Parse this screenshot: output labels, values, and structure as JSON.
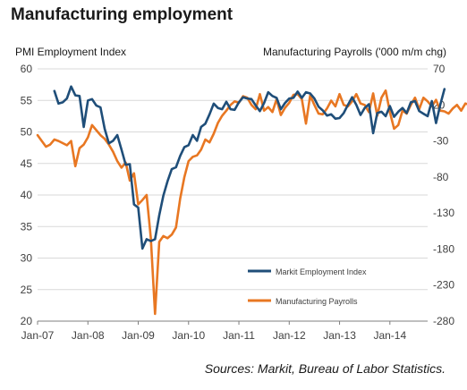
{
  "title": "Manufacturing employment",
  "source": "Sources: Markit, Bureau of Labor Statistics.",
  "colors": {
    "series_pmi": "#1f4e79",
    "series_payrolls": "#e87722",
    "grid": "#d9d9d9",
    "axis": "#7f7f7f"
  },
  "chart_data": {
    "type": "line",
    "title": "Manufacturing employment",
    "xlabel": "",
    "x_tick_labels": [
      "Jan-07",
      "Jan-08",
      "Jan-09",
      "Jan-10",
      "Jan-11",
      "Jan-12",
      "Jan-13",
      "Jan-14"
    ],
    "x_range": [
      "2007-01",
      "2014-10"
    ],
    "y_left": {
      "label": "PMI Employment Index",
      "ticks": [
        20,
        25,
        30,
        35,
        40,
        45,
        50,
        55,
        60
      ],
      "ylim": [
        20,
        60
      ]
    },
    "y_right": {
      "label": "Manufacturing Payrolls ('000 m/m chg)",
      "ticks": [
        70,
        20,
        -30,
        -80,
        -130,
        -180,
        -230,
        -280
      ],
      "ylim": [
        -280,
        70
      ]
    },
    "grid": true,
    "legend_position": "bottom-right",
    "series": [
      {
        "name": "Markit Employment Index",
        "axis": "left",
        "start": "2007-05",
        "values": [
          56.5,
          54.5,
          54.7,
          55.3,
          57.2,
          55.8,
          55.7,
          50.8,
          55,
          55.2,
          54.2,
          53.9,
          50.5,
          48.2,
          48.6,
          49.5,
          47.2,
          44.8,
          44.9,
          38.5,
          38,
          31.5,
          33,
          32.7,
          33,
          36.8,
          39.9,
          42.2,
          44.1,
          44.4,
          46.2,
          47.6,
          47.9,
          49.5,
          48.6,
          50.8,
          51.3,
          52.8,
          54.5,
          53.8,
          53.6,
          54.8,
          53.6,
          53.5,
          54.7,
          55.5,
          55.3,
          55.2,
          54.2,
          53.3,
          54.6,
          56.3,
          55.7,
          55.4,
          53.6,
          54.6,
          55.3,
          55.4,
          56.4,
          55.4,
          56.3,
          56.1,
          55.3,
          54,
          53.4,
          52.6,
          52.8,
          52.1,
          52.2,
          53,
          54.3,
          55.5,
          54.3,
          52.7,
          53.8,
          54.4,
          49.8,
          53,
          53.2,
          52.5,
          54.1,
          52.4,
          53.2,
          53.8,
          53,
          54.7,
          54.9,
          53.3,
          52.9,
          52.5,
          54.9,
          51.4,
          54.3,
          56.8
        ]
      },
      {
        "name": "Manufacturing Payrolls",
        "axis": "right",
        "start": "2007-01",
        "values": [
          -22,
          -30,
          -38,
          -35,
          -28,
          -30,
          -33,
          -36,
          -30,
          -65,
          -40,
          -35,
          -25,
          -8,
          -15,
          -22,
          -27,
          -35,
          -45,
          -58,
          -67,
          -60,
          -85,
          -75,
          -118,
          -112,
          -105,
          -165,
          -270,
          -170,
          -162,
          -165,
          -160,
          -150,
          -110,
          -80,
          -58,
          -52,
          -50,
          -42,
          -28,
          -32,
          -20,
          -5,
          5,
          12,
          20,
          25,
          23,
          32,
          30,
          20,
          14,
          35,
          12,
          17,
          10,
          28,
          6,
          16,
          23,
          34,
          35,
          28,
          -6,
          33,
          20,
          8,
          7,
          15,
          26,
          18,
          35,
          20,
          18,
          25,
          35,
          22,
          20,
          10,
          36,
          5,
          30,
          40,
          10,
          -13,
          -8,
          12,
          8,
          20,
          30,
          14,
          30,
          25,
          18,
          27,
          12,
          11,
          8,
          15,
          20,
          12,
          22,
          20,
          14,
          16,
          25,
          19,
          15,
          13,
          23,
          30,
          5
        ]
      }
    ]
  }
}
